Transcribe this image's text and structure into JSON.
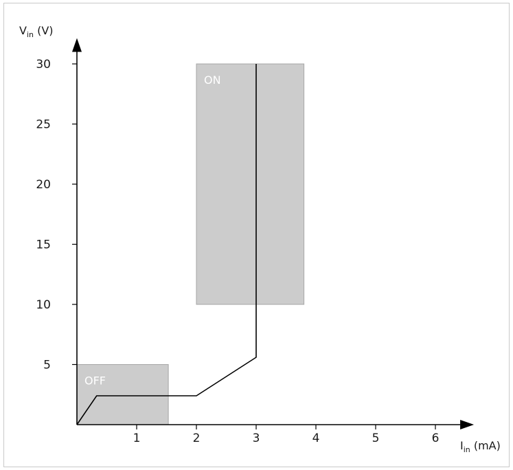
{
  "chart_data": {
    "type": "line",
    "title": "",
    "xlabel": {
      "main": "I",
      "sub": "in",
      "unit": " (mA)"
    },
    "ylabel": {
      "main": "V",
      "sub": "in",
      "unit": " (V)"
    },
    "xlim": [
      0,
      6.3
    ],
    "ylim": [
      0,
      31
    ],
    "x_ticks": [
      1,
      2,
      3,
      4,
      5,
      6
    ],
    "y_ticks": [
      5,
      10,
      15,
      20,
      25,
      30
    ],
    "grid": false,
    "colors": {
      "region_fill": "#cccccc",
      "region_stroke": "#a6a6a6",
      "line": "#000000",
      "axis": "#000000"
    },
    "regions": [
      {
        "name": "OFF",
        "x0": 0,
        "x1": 1.53,
        "y0": 0,
        "y1": 5
      },
      {
        "name": "ON",
        "x0": 2,
        "x1": 3.8,
        "y0": 10,
        "y1": 30
      }
    ],
    "series": [
      {
        "x": [
          0,
          0.33,
          2,
          3,
          3
        ],
        "y": [
          0,
          2.4,
          2.4,
          5.6,
          30
        ]
      }
    ]
  }
}
